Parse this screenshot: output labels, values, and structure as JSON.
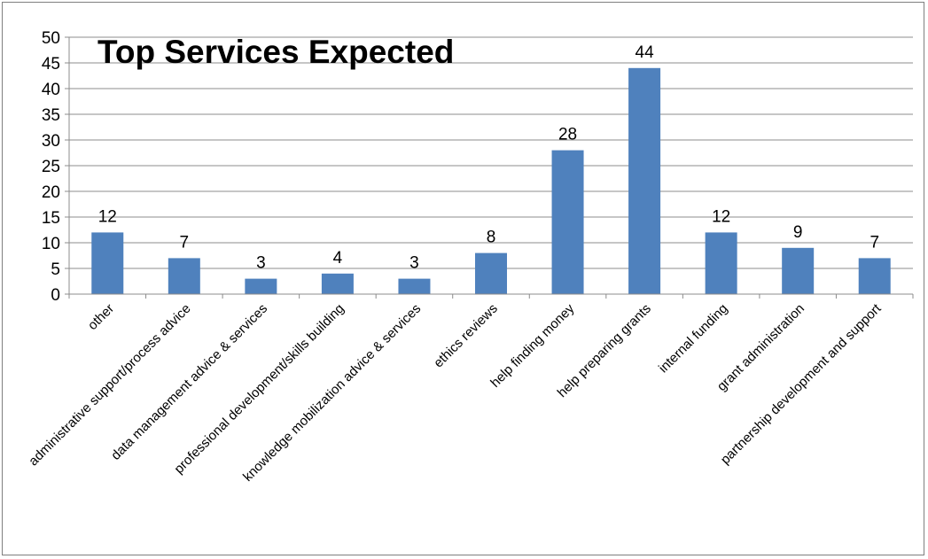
{
  "chart_data": {
    "type": "bar",
    "title": "Top Services Expected",
    "categories": [
      "other",
      "administrative support/process advice",
      "data management advice & services",
      "professional development/skills building",
      "knowledge mobilization advice & services",
      "ethics reviews",
      "help finding money",
      "help preparing grants",
      "internal funding",
      "grant administration",
      "partnership development and support"
    ],
    "values": [
      12,
      7,
      3,
      4,
      3,
      8,
      28,
      44,
      12,
      9,
      7
    ],
    "ylim": [
      0,
      50
    ],
    "ytick_step": 5,
    "grid": true,
    "legend": false,
    "bar_color": "#4f81bd"
  }
}
